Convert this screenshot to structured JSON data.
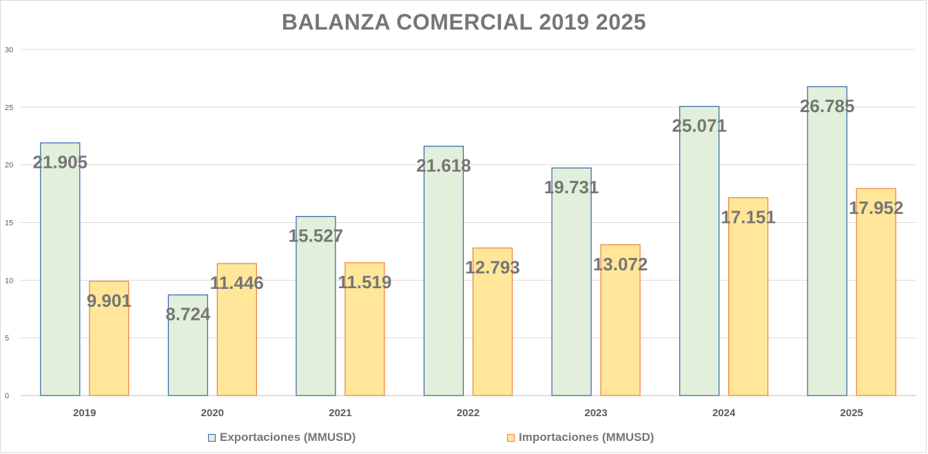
{
  "chart_data": {
    "type": "bar",
    "title": "BALANZA COMERCIAL 2019 2025",
    "categories": [
      "2019",
      "2020",
      "2021",
      "2022",
      "2023",
      "2024",
      "2025"
    ],
    "series": [
      {
        "name": "Exportaciones (MMUSD)",
        "values": [
          21.905,
          8.724,
          15.527,
          21.618,
          19.731,
          25.071,
          26.785
        ],
        "labels": [
          "21.905",
          "8.724",
          "15.527",
          "21.618",
          "19.731",
          "25.071",
          "26.785"
        ],
        "fill": "#e2efda",
        "stroke": "#2e5fa8"
      },
      {
        "name": "Importaciones (MMUSD)",
        "values": [
          9.901,
          11.446,
          11.519,
          12.793,
          13.072,
          17.151,
          17.952
        ],
        "labels": [
          "9.901",
          "11.446",
          "11.519",
          "12.793",
          "13.072",
          "17.151",
          "17.952"
        ],
        "fill": "#ffe699",
        "stroke": "#ed7d31"
      }
    ],
    "ylim": [
      0,
      30
    ],
    "yticks": [
      "0",
      "5",
      "10",
      "15",
      "20",
      "25",
      "30"
    ],
    "grid": true,
    "legend_position": "bottom",
    "xlabel": "",
    "ylabel": ""
  }
}
